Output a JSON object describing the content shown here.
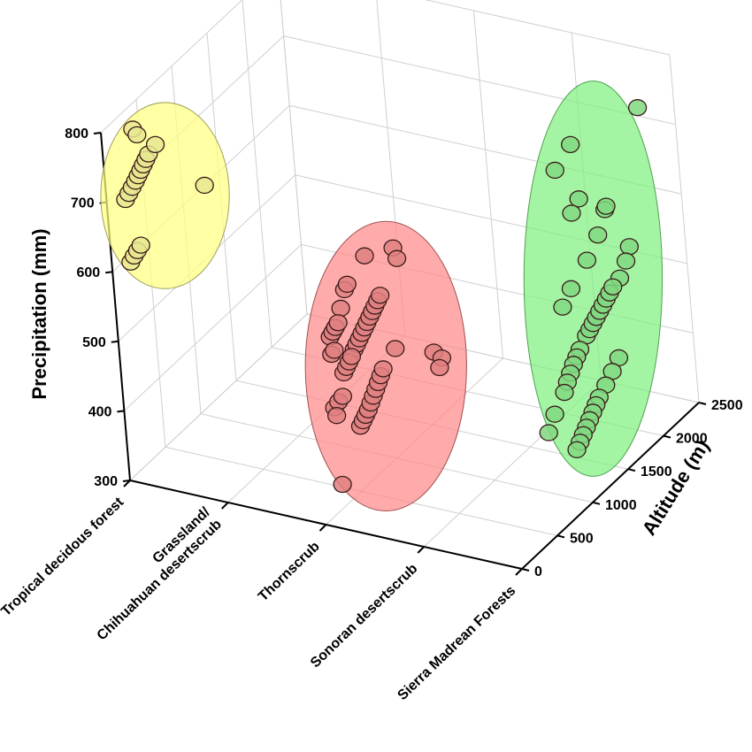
{
  "chart_data": {
    "type": "scatter3d",
    "title": "",
    "xlabel": "",
    "ylabel": "Altitude (m)",
    "zlabel": "Precipitation (mm)",
    "x_categories": [
      "Tropical decidous forest",
      "Grassland/\nChihuahuan desertscrub",
      "Thornscrub",
      "Sonoran desertscrub",
      "Sierra Madrean Forests"
    ],
    "y_ticks": [
      "0",
      "500",
      "1000",
      "1500",
      "2000",
      "2500"
    ],
    "y_range": [
      0,
      2500
    ],
    "z_ticks": [
      "300",
      "400",
      "500",
      "600",
      "700",
      "800"
    ],
    "z_range": [
      300,
      800
    ],
    "grid": true,
    "clusters": [
      {
        "name": "yellow cluster",
        "color": "#ffff80",
        "stroke": "#a0a060"
      },
      {
        "name": "red cluster",
        "color": "#ff8a8a",
        "stroke": "#a05050"
      },
      {
        "name": "green cluster",
        "color": "#80f080",
        "stroke": "#50a050"
      }
    ],
    "series": [
      {
        "name": "yellow cluster",
        "marker_color": "#e8e890",
        "points": [
          {
            "x": 0,
            "y": 420,
            "z": 765
          },
          {
            "x": 0,
            "y": 470,
            "z": 752
          },
          {
            "x": 0,
            "y": 250,
            "z": 680
          },
          {
            "x": 0,
            "y": 300,
            "z": 684
          },
          {
            "x": 0,
            "y": 350,
            "z": 688
          },
          {
            "x": 0,
            "y": 400,
            "z": 692
          },
          {
            "x": 0,
            "y": 440,
            "z": 696
          },
          {
            "x": 0,
            "y": 480,
            "z": 700
          },
          {
            "x": 0,
            "y": 520,
            "z": 704
          },
          {
            "x": 0,
            "y": 560,
            "z": 708
          },
          {
            "x": 0,
            "y": 600,
            "z": 712
          },
          {
            "x": 0,
            "y": 700,
            "z": 716
          },
          {
            "x": 0,
            "y": 250,
            "z": 590
          },
          {
            "x": 0,
            "y": 300,
            "z": 594
          },
          {
            "x": 0,
            "y": 350,
            "z": 597
          },
          {
            "x": 0,
            "y": 400,
            "z": 600
          },
          {
            "x": 0,
            "y": 1300,
            "z": 600
          }
        ]
      },
      {
        "name": "red cluster",
        "marker_color": "#e08080",
        "points": [
          {
            "x": 2,
            "y": 800,
            "z": 610
          },
          {
            "x": 2,
            "y": 500,
            "z": 590
          },
          {
            "x": 2,
            "y": 540,
            "z": 594
          },
          {
            "x": 2,
            "y": 430,
            "z": 570
          },
          {
            "x": 2,
            "y": 260,
            "z": 545
          },
          {
            "x": 2,
            "y": 300,
            "z": 548
          },
          {
            "x": 2,
            "y": 340,
            "z": 551
          },
          {
            "x": 2,
            "y": 380,
            "z": 554
          },
          {
            "x": 2,
            "y": 260,
            "z": 520
          },
          {
            "x": 2,
            "y": 300,
            "z": 522
          },
          {
            "x": 2,
            "y": 560,
            "z": 498
          },
          {
            "x": 2,
            "y": 600,
            "z": 502
          },
          {
            "x": 2,
            "y": 640,
            "z": 506
          },
          {
            "x": 2,
            "y": 680,
            "z": 510
          },
          {
            "x": 2,
            "y": 720,
            "z": 514
          },
          {
            "x": 2,
            "y": 760,
            "z": 518
          },
          {
            "x": 2,
            "y": 800,
            "z": 522
          },
          {
            "x": 2,
            "y": 840,
            "z": 526
          },
          {
            "x": 2,
            "y": 880,
            "z": 530
          },
          {
            "x": 2,
            "y": 920,
            "z": 534
          },
          {
            "x": 2,
            "y": 960,
            "z": 538
          },
          {
            "x": 2,
            "y": 400,
            "z": 480
          },
          {
            "x": 2,
            "y": 440,
            "z": 484
          },
          {
            "x": 2,
            "y": 480,
            "z": 488
          },
          {
            "x": 2,
            "y": 520,
            "z": 492
          },
          {
            "x": 2,
            "y": 240,
            "z": 445
          },
          {
            "x": 2,
            "y": 300,
            "z": 448
          },
          {
            "x": 2,
            "y": 360,
            "z": 450
          },
          {
            "x": 2,
            "y": 260,
            "z": 432
          },
          {
            "x": 2,
            "y": 1180,
            "z": 585
          },
          {
            "x": 2,
            "y": 1220,
            "z": 566
          },
          {
            "x": 2,
            "y": 1100,
            "z": 448
          },
          {
            "x": 2,
            "y": 1600,
            "z": 395
          },
          {
            "x": 2,
            "y": 1700,
            "z": 377
          },
          {
            "x": 2,
            "y": 1660,
            "z": 367
          },
          {
            "x": 2,
            "y": 260,
            "z": 333
          },
          {
            "x": 2,
            "y": 560,
            "z": 388
          },
          {
            "x": 2,
            "y": 600,
            "z": 392
          },
          {
            "x": 2,
            "y": 640,
            "z": 396
          },
          {
            "x": 2,
            "y": 680,
            "z": 400
          },
          {
            "x": 2,
            "y": 720,
            "z": 406
          },
          {
            "x": 2,
            "y": 760,
            "z": 412
          },
          {
            "x": 2,
            "y": 800,
            "z": 418
          },
          {
            "x": 2,
            "y": 840,
            "z": 424
          },
          {
            "x": 2,
            "y": 880,
            "z": 430
          },
          {
            "x": 2,
            "y": 920,
            "z": 436
          }
        ]
      },
      {
        "name": "green cluster",
        "marker_color": "#80d880",
        "points": [
          {
            "x": 4,
            "y": 1100,
            "z": 805
          },
          {
            "x": 4,
            "y": 870,
            "z": 790
          },
          {
            "x": 4,
            "y": 2020,
            "z": 770
          },
          {
            "x": 4,
            "y": 1150,
            "z": 722
          },
          {
            "x": 4,
            "y": 1040,
            "z": 712
          },
          {
            "x": 4,
            "y": 1480,
            "z": 675
          },
          {
            "x": 4,
            "y": 1500,
            "z": 678
          },
          {
            "x": 4,
            "y": 1360,
            "z": 650
          },
          {
            "x": 4,
            "y": 1190,
            "z": 630
          },
          {
            "x": 4,
            "y": 950,
            "z": 612
          },
          {
            "x": 4,
            "y": 820,
            "z": 598
          },
          {
            "x": 4,
            "y": 1760,
            "z": 595
          },
          {
            "x": 4,
            "y": 1700,
            "z": 580
          },
          {
            "x": 4,
            "y": 1600,
            "z": 565
          },
          {
            "x": 4,
            "y": 1100,
            "z": 530
          },
          {
            "x": 4,
            "y": 1150,
            "z": 534
          },
          {
            "x": 4,
            "y": 1200,
            "z": 538
          },
          {
            "x": 4,
            "y": 1250,
            "z": 542
          },
          {
            "x": 4,
            "y": 1300,
            "z": 546
          },
          {
            "x": 4,
            "y": 1350,
            "z": 550
          },
          {
            "x": 4,
            "y": 1400,
            "z": 554
          },
          {
            "x": 4,
            "y": 1450,
            "z": 558
          },
          {
            "x": 4,
            "y": 1500,
            "z": 562
          },
          {
            "x": 4,
            "y": 1000,
            "z": 520
          },
          {
            "x": 4,
            "y": 950,
            "z": 514
          },
          {
            "x": 4,
            "y": 900,
            "z": 508
          },
          {
            "x": 4,
            "y": 850,
            "z": 500
          },
          {
            "x": 4,
            "y": 800,
            "z": 492
          },
          {
            "x": 4,
            "y": 750,
            "z": 482
          },
          {
            "x": 4,
            "y": 500,
            "z": 448
          },
          {
            "x": 4,
            "y": 600,
            "z": 465
          },
          {
            "x": 4,
            "y": 1500,
            "z": 460
          },
          {
            "x": 4,
            "y": 1400,
            "z": 450
          },
          {
            "x": 4,
            "y": 1300,
            "z": 440
          },
          {
            "x": 4,
            "y": 1200,
            "z": 432
          },
          {
            "x": 4,
            "y": 1150,
            "z": 426
          },
          {
            "x": 4,
            "y": 1100,
            "z": 420
          },
          {
            "x": 4,
            "y": 1050,
            "z": 414
          },
          {
            "x": 4,
            "y": 1000,
            "z": 408
          },
          {
            "x": 4,
            "y": 950,
            "z": 402
          },
          {
            "x": 4,
            "y": 900,
            "z": 396
          },
          {
            "x": 4,
            "y": 850,
            "z": 390
          }
        ]
      }
    ]
  }
}
